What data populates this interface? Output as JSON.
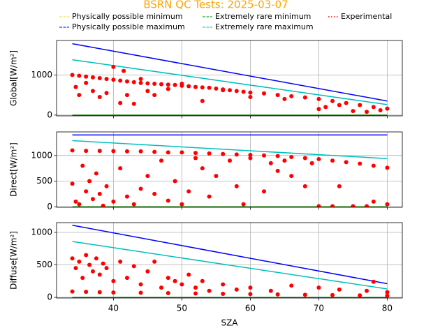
{
  "chart_data": [
    {
      "type": "scatter",
      "title": "BSRN QC Tests: 2025-03-07",
      "ylabel": "Global[W/m²]",
      "xlim": [
        31.7,
        82.2
      ],
      "xticks": [
        40,
        50,
        60,
        70,
        80
      ],
      "show_xtick_labels": false,
      "ylim": [
        -20,
        1860
      ],
      "yticks": [
        0,
        1000
      ],
      "grid": true,
      "series": [
        {
          "name": "Physically possible minimum",
          "color": "#ffdd00",
          "style": "line",
          "x": [
            34,
            80
          ],
          "values": [
            -4,
            -4
          ]
        },
        {
          "name": "Physically possible maximum",
          "color": "#0000ff",
          "style": "line",
          "x": [
            34,
            80
          ],
          "values": [
            1780,
            350
          ]
        },
        {
          "name": "Extremely rare minimum",
          "color": "#008000",
          "style": "line",
          "x": [
            34,
            80
          ],
          "values": [
            -2,
            -2
          ]
        },
        {
          "name": "Extremely rare maximum",
          "color": "#00bfbf",
          "style": "line",
          "x": [
            34,
            80
          ],
          "values": [
            1380,
            260
          ]
        },
        {
          "name": "Experimental",
          "color": "#ff0000",
          "style": "points",
          "x": [
            34,
            35,
            36,
            37,
            38,
            39,
            40,
            41,
            42,
            43,
            44,
            45,
            46,
            47,
            48,
            49,
            50,
            51,
            52,
            53,
            54,
            55,
            56,
            57,
            58,
            59,
            60,
            62,
            64,
            66,
            68,
            70,
            72,
            74,
            76,
            78,
            80,
            34.5,
            35,
            36,
            37,
            38,
            39,
            40,
            41,
            41.5,
            42,
            43,
            44,
            45,
            46,
            48,
            50,
            53,
            56,
            60,
            65,
            70,
            71,
            73,
            75,
            77,
            79
          ],
          "values": [
            1000,
            980,
            960,
            940,
            920,
            900,
            880,
            860,
            840,
            820,
            800,
            790,
            780,
            770,
            760,
            750,
            730,
            720,
            700,
            690,
            680,
            660,
            640,
            620,
            600,
            580,
            560,
            540,
            500,
            470,
            440,
            400,
            350,
            300,
            250,
            200,
            160,
            700,
            500,
            800,
            600,
            450,
            550,
            1200,
            300,
            1100,
            500,
            280,
            900,
            600,
            500,
            650,
            780,
            350,
            620,
            450,
            400,
            150,
            200,
            250,
            100,
            80,
            120
          ]
        }
      ]
    },
    {
      "type": "scatter",
      "ylabel": "Direct[W/m²]",
      "xlim": [
        31.7,
        82.2
      ],
      "xticks": [
        40,
        50,
        60,
        70,
        80
      ],
      "show_xtick_labels": false,
      "ylim": [
        -10,
        1460
      ],
      "yticks": [
        0,
        500,
        1000
      ],
      "grid": true,
      "series": [
        {
          "color": "#ffdd00",
          "style": "line",
          "x": [
            34,
            80
          ],
          "values": [
            -4,
            -4
          ]
        },
        {
          "color": "#0000ff",
          "style": "line",
          "x": [
            34,
            80
          ],
          "values": [
            1400,
            1400
          ]
        },
        {
          "color": "#008000",
          "style": "line",
          "x": [
            34,
            80
          ],
          "values": [
            -2,
            -2
          ]
        },
        {
          "color": "#00bfbf",
          "style": "line",
          "x": [
            34,
            80
          ],
          "values": [
            1290,
            940
          ]
        },
        {
          "color": "#ff0000",
          "style": "points",
          "x": [
            34,
            36,
            38,
            40,
            42,
            44,
            46,
            48,
            50,
            52,
            54,
            56,
            58,
            60,
            62,
            64,
            66,
            68,
            70,
            72,
            74,
            76,
            78,
            80,
            34,
            34.5,
            35,
            35.5,
            36,
            36.5,
            37,
            37.5,
            38,
            38.5,
            39,
            40,
            41,
            42,
            43,
            44,
            45,
            46,
            47,
            48,
            49,
            50,
            51,
            52,
            53,
            54,
            55,
            57,
            58,
            59,
            60,
            62,
            63,
            64,
            65,
            66,
            68,
            69,
            70,
            72,
            73,
            75,
            77,
            78,
            80
          ],
          "values": [
            1100,
            1090,
            1090,
            1085,
            1080,
            1080,
            1070,
            1060,
            1060,
            1050,
            1040,
            1030,
            1020,
            1010,
            1000,
            990,
            970,
            950,
            930,
            900,
            870,
            840,
            800,
            760,
            450,
            100,
            50,
            800,
            300,
            500,
            150,
            650,
            250,
            20,
            400,
            100,
            750,
            200,
            50,
            350,
            600,
            250,
            900,
            120,
            500,
            50,
            300,
            950,
            750,
            200,
            600,
            900,
            400,
            50,
            950,
            300,
            850,
            700,
            900,
            600,
            400,
            850,
            10,
            10,
            400,
            10,
            10,
            100,
            50
          ]
        }
      ]
    },
    {
      "type": "scatter",
      "ylabel": "Diffuse[W/m²]",
      "xlabel": "SZA",
      "xlim": [
        31.7,
        82.2
      ],
      "xticks": [
        40,
        50,
        60,
        70,
        80
      ],
      "show_xtick_labels": true,
      "ylim": [
        -10,
        1150
      ],
      "yticks": [
        0,
        500,
        1000
      ],
      "grid": true,
      "series": [
        {
          "color": "#ffdd00",
          "style": "line",
          "x": [
            34,
            80
          ],
          "values": [
            -4,
            -4
          ]
        },
        {
          "color": "#0000ff",
          "style": "line",
          "x": [
            34,
            80
          ],
          "values": [
            1110,
            210
          ]
        },
        {
          "color": "#008000",
          "style": "line",
          "x": [
            34,
            80
          ],
          "values": [
            -2,
            -2
          ]
        },
        {
          "color": "#00bfbf",
          "style": "line",
          "x": [
            34,
            80
          ],
          "values": [
            860,
            130
          ]
        },
        {
          "color": "#ff0000",
          "style": "points",
          "x": [
            34,
            36,
            38,
            40,
            44,
            48,
            52,
            56,
            60,
            64,
            68,
            72,
            76,
            80,
            34,
            34.5,
            35,
            35.5,
            36,
            36.5,
            37,
            37.5,
            38,
            38.5,
            39,
            40,
            41,
            42,
            43,
            44,
            45,
            46,
            47,
            48,
            49,
            50,
            51,
            52,
            53,
            54,
            56,
            58,
            60,
            63,
            66,
            70,
            73,
            77,
            78,
            80
          ],
          "values": [
            90,
            85,
            80,
            75,
            70,
            65,
            60,
            55,
            50,
            45,
            40,
            35,
            30,
            25,
            600,
            450,
            550,
            300,
            650,
            500,
            400,
            600,
            350,
            520,
            450,
            250,
            550,
            300,
            480,
            200,
            400,
            550,
            150,
            300,
            250,
            200,
            350,
            150,
            250,
            100,
            200,
            120,
            150,
            100,
            180,
            150,
            120,
            100,
            240,
            80
          ]
        }
      ]
    }
  ]
}
